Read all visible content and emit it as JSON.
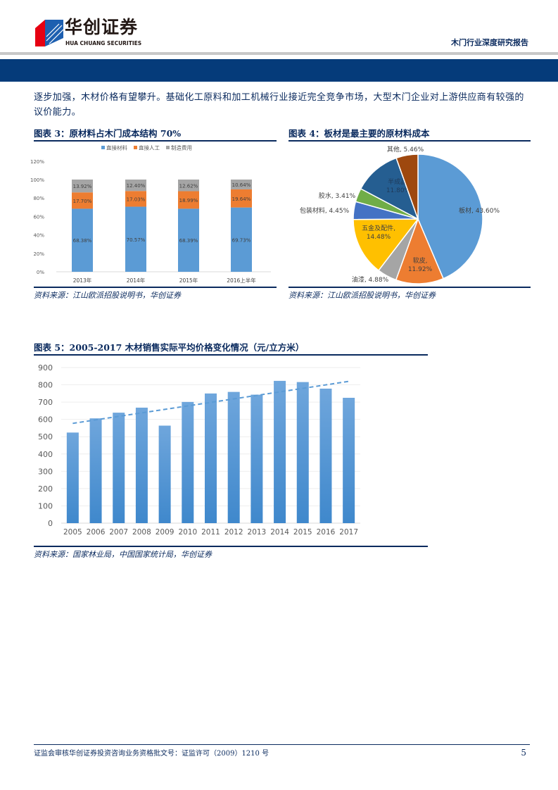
{
  "header": {
    "logo_cn": "华创证券",
    "logo_en": "HUA CHUANG SECURITIES",
    "report_type": "木门行业深度研究报告"
  },
  "body": {
    "paragraph": "逐步加强，木材价格有望攀升。基础化工原料和加工机械行业接近完全竞争市场，大型木门企业对上游供应商有较强的议价能力。"
  },
  "figures": [
    {
      "title": "图表 3：原材料占木门成本结构 70%",
      "source": "资料来源：江山欧派招股说明书，华创证券"
    },
    {
      "title": "图表 4：板材是最主要的原材料成本",
      "source": "资料来源：江山欧派招股说明书，华创证券"
    },
    {
      "title": "图表 5：2005-2017 木材销售实际平均价格变化情况（元/立方米）",
      "source": "资料来源：国家林业局，中国国家统计局，华创证券"
    }
  ],
  "chart_data": [
    {
      "type": "bar",
      "stacked": true,
      "categories": [
        "2013年",
        "2014年",
        "2015年",
        "2016上半年"
      ],
      "series": [
        {
          "name": "直接材料",
          "color": "#5b9bd5",
          "values": [
            68.38,
            70.57,
            68.39,
            69.73
          ],
          "labels": [
            "68.38%",
            "70.57%",
            "68.39%",
            "69.73%"
          ]
        },
        {
          "name": "直接人工",
          "color": "#ed7d31",
          "values": [
            17.7,
            17.03,
            18.99,
            19.64
          ],
          "labels": [
            "17.70%",
            "17.03%",
            "18.99%",
            "19.64%"
          ]
        },
        {
          "name": "制造费用",
          "color": "#a5a5a5",
          "values": [
            13.92,
            12.4,
            12.62,
            10.64
          ],
          "labels": [
            "13.92%",
            "12.40%",
            "12.62%",
            "10.64%"
          ]
        }
      ],
      "yticks": [
        "0%",
        "20%",
        "40%",
        "60%",
        "80%",
        "100%",
        "120%"
      ],
      "ylim": [
        0,
        120
      ],
      "legend": "top",
      "grid": false
    },
    {
      "type": "pie",
      "slices": [
        {
          "name": "板材",
          "value": 43.6,
          "label": "43.60%",
          "color": "#5b9bd5"
        },
        {
          "name": "软皮",
          "value": 11.92,
          "label": "11.92%",
          "color": "#ed7d31"
        },
        {
          "name": "油漆",
          "value": 4.88,
          "label": "4.88%",
          "color": "#a5a5a5"
        },
        {
          "name": "五金及配件",
          "value": 14.48,
          "label": "14.48%",
          "color": "#ffc000"
        },
        {
          "name": "包装材料",
          "value": 4.45,
          "label": "4.45%",
          "color": "#4472c4"
        },
        {
          "name": "胶水",
          "value": 3.41,
          "label": "3.41%",
          "color": "#70ad47"
        },
        {
          "name": "半成品",
          "value": 11.8,
          "label": "11.80%",
          "color": "#255e91"
        },
        {
          "name": "其他",
          "value": 5.46,
          "label": "5.46%",
          "color": "#9e480e"
        }
      ]
    },
    {
      "type": "bar",
      "categories": [
        "2005",
        "2006",
        "2007",
        "2008",
        "2009",
        "2010",
        "2011",
        "2012",
        "2013",
        "2014",
        "2015",
        "2016",
        "2017"
      ],
      "values": [
        524,
        606,
        639,
        668,
        564,
        701,
        750,
        759,
        743,
        823,
        816,
        778,
        725
      ],
      "trendline": {
        "type": "linear",
        "style": "dashed",
        "start": 577,
        "end": 820
      },
      "yticks": [
        "0",
        "100",
        "200",
        "300",
        "400",
        "500",
        "600",
        "700",
        "800",
        "900"
      ],
      "ylim": [
        0,
        900
      ],
      "grid": true,
      "color": "#5b9bd5"
    }
  ],
  "footer": {
    "license": "证监会审核华创证券投资咨询业务资格批文号：证监许可（2009）1210 号",
    "page_number": "5"
  }
}
